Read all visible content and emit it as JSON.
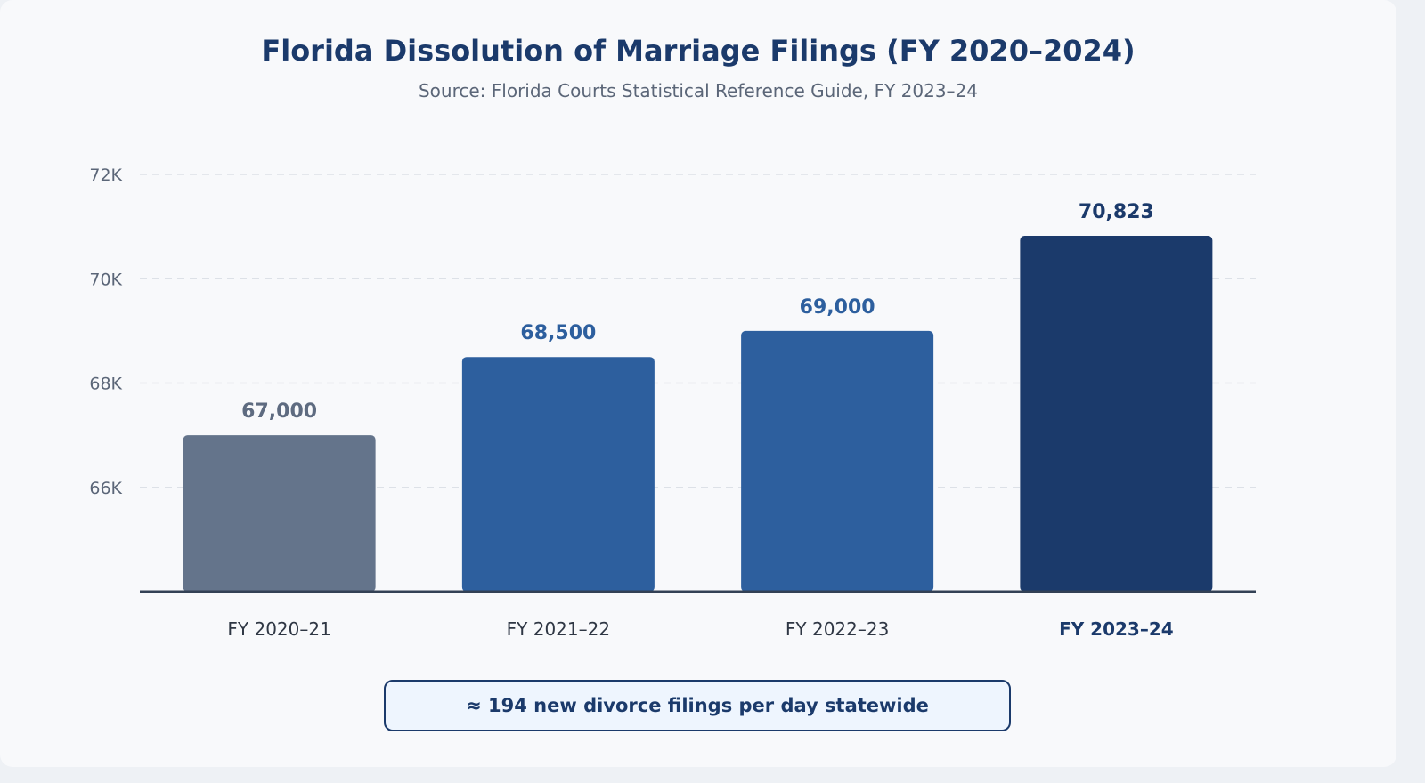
{
  "chart_data": {
    "type": "bar",
    "title": "Florida Dissolution of Marriage Filings (FY 2020–2024)",
    "subtitle": "Source: Florida Courts Statistical Reference Guide, FY 2023–24",
    "categories": [
      "FY 2020–21",
      "FY 2021–22",
      "FY 2022–23",
      "FY 2023–24"
    ],
    "values": [
      67000,
      68500,
      69000,
      70823
    ],
    "data_labels": [
      "67,000",
      "68,500",
      "69,000",
      "70,823"
    ],
    "bar_colors": [
      "#64748b",
      "#2d5f9e",
      "#2d5f9e",
      "#1b3a6b"
    ],
    "label_colors": [
      "#5e6b80",
      "#2d5f9e",
      "#2d5f9e",
      "#1b3a6b"
    ],
    "highlight_category": "FY 2023–24",
    "ylim": [
      64000,
      72000
    ],
    "yticks": [
      66000,
      68000,
      70000,
      72000
    ],
    "ytick_labels": [
      "66K",
      "68K",
      "70K",
      "72K"
    ],
    "xlabel": "",
    "ylabel": "",
    "grid": "horizontal dashed"
  },
  "callout": "≈ 194 new divorce filings per day statewide"
}
